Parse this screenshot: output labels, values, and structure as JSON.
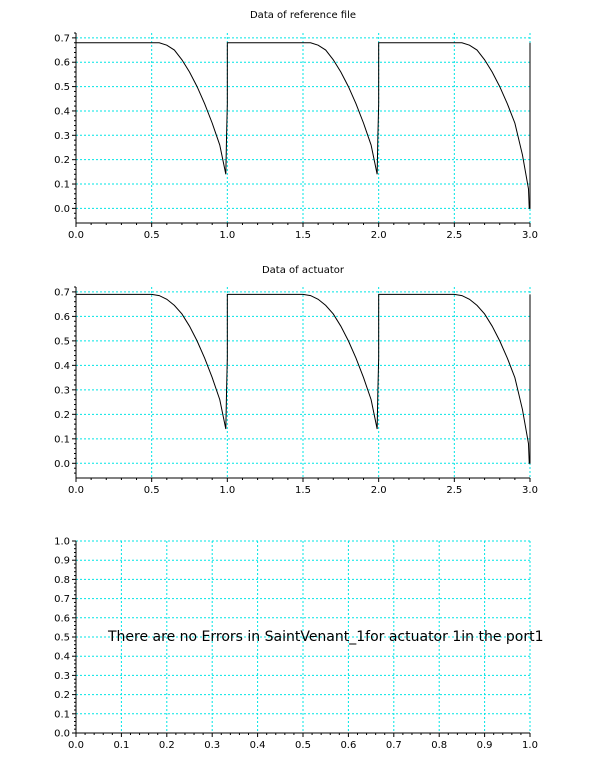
{
  "chart_data": [
    {
      "type": "line",
      "title": "Data of reference file",
      "xlim": [
        0,
        3
      ],
      "ylim": [
        -0.06,
        0.72
      ],
      "x_ticks": [
        "0.0",
        "0.5",
        "1.0",
        "1.5",
        "2.0",
        "2.5",
        "3.0"
      ],
      "y_ticks": [
        "0.0",
        "0.1",
        "0.2",
        "0.3",
        "0.4",
        "0.5",
        "0.6",
        "0.7"
      ],
      "grid": true,
      "series": [
        {
          "color": "#000000",
          "x": [
            0.0,
            0.55,
            0.6,
            0.65,
            0.7,
            0.75,
            0.8,
            0.85,
            0.9,
            0.95,
            0.99,
            0.995,
            1.0,
            1.0,
            1.55,
            1.6,
            1.65,
            1.7,
            1.75,
            1.8,
            1.85,
            1.9,
            1.95,
            1.99,
            1.995,
            2.0,
            2.0,
            2.55,
            2.6,
            2.65,
            2.7,
            2.75,
            2.8,
            2.85,
            2.9,
            2.95,
            2.99,
            2.995,
            3.0,
            3.0
          ],
          "y": [
            0.68,
            0.68,
            0.67,
            0.65,
            0.61,
            0.56,
            0.5,
            0.43,
            0.35,
            0.26,
            0.14,
            0.3,
            0.43,
            0.68,
            0.68,
            0.67,
            0.65,
            0.61,
            0.56,
            0.5,
            0.43,
            0.35,
            0.26,
            0.14,
            0.3,
            0.43,
            0.68,
            0.68,
            0.67,
            0.65,
            0.61,
            0.56,
            0.5,
            0.43,
            0.35,
            0.22,
            0.08,
            0.0,
            0.0,
            0.68
          ]
        }
      ]
    },
    {
      "type": "line",
      "title": "Data of actuator",
      "xlim": [
        0,
        3
      ],
      "ylim": [
        -0.06,
        0.72
      ],
      "x_ticks": [
        "0.0",
        "0.5",
        "1.0",
        "1.5",
        "2.0",
        "2.5",
        "3.0"
      ],
      "y_ticks": [
        "0.0",
        "0.1",
        "0.2",
        "0.3",
        "0.4",
        "0.5",
        "0.6",
        "0.7"
      ],
      "grid": true,
      "series": [
        {
          "color": "#000000",
          "x": [
            0.0,
            0.5,
            0.55,
            0.6,
            0.65,
            0.7,
            0.75,
            0.8,
            0.85,
            0.9,
            0.95,
            0.99,
            0.995,
            1.0,
            1.0,
            1.5,
            1.55,
            1.6,
            1.65,
            1.7,
            1.75,
            1.8,
            1.85,
            1.9,
            1.95,
            1.99,
            1.995,
            2.0,
            2.0,
            2.5,
            2.55,
            2.6,
            2.65,
            2.7,
            2.75,
            2.8,
            2.85,
            2.9,
            2.95,
            2.99,
            2.995,
            3.0,
            3.0
          ],
          "y": [
            0.69,
            0.69,
            0.685,
            0.67,
            0.645,
            0.61,
            0.56,
            0.5,
            0.43,
            0.35,
            0.26,
            0.14,
            0.3,
            0.43,
            0.69,
            0.69,
            0.685,
            0.67,
            0.645,
            0.61,
            0.56,
            0.5,
            0.43,
            0.35,
            0.26,
            0.14,
            0.3,
            0.43,
            0.69,
            0.69,
            0.685,
            0.67,
            0.645,
            0.61,
            0.56,
            0.5,
            0.43,
            0.35,
            0.22,
            0.08,
            0.0,
            0.0,
            0.69
          ]
        }
      ]
    },
    {
      "type": "line",
      "title": "",
      "xlim": [
        0,
        1
      ],
      "ylim": [
        0,
        1
      ],
      "x_ticks": [
        "0.0",
        "0.1",
        "0.2",
        "0.3",
        "0.4",
        "0.5",
        "0.6",
        "0.7",
        "0.8",
        "0.9",
        "1.0"
      ],
      "y_ticks": [
        "0.0",
        "0.1",
        "0.2",
        "0.3",
        "0.4",
        "0.5",
        "0.6",
        "0.7",
        "0.8",
        "0.9",
        "1.0"
      ],
      "grid": true,
      "series": [],
      "annotation": "There are no Errors in SaintVenant_1for actuator 1in the port1"
    }
  ],
  "colors": {
    "grid": "#00e5e5",
    "axis": "#000000",
    "line": "#000000"
  }
}
